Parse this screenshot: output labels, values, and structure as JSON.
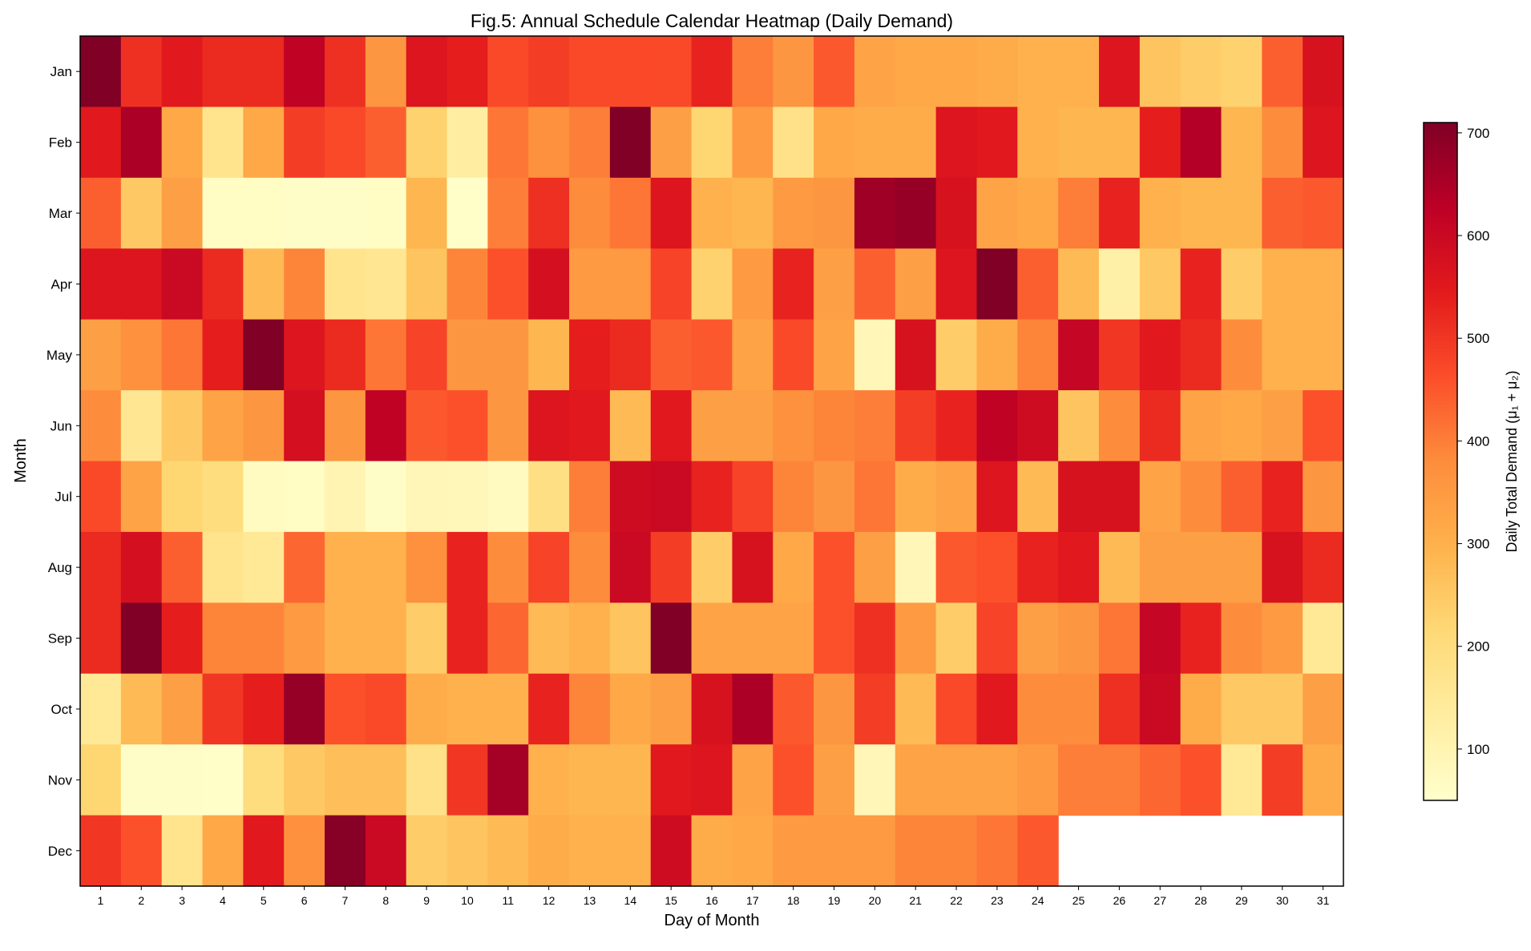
{
  "chart_data": {
    "type": "heatmap",
    "title": "Fig.5: Annual Schedule Calendar Heatmap (Daily Demand)",
    "xlabel": "Day of Month",
    "ylabel": "Month",
    "colorbar_label": "Daily Total Demand (μ₁ + μ₂)",
    "colormap": "YlOrRd",
    "colorbar_range": [
      50,
      710
    ],
    "colorbar_ticks": [
      100,
      200,
      300,
      400,
      500,
      600,
      700
    ],
    "grid": false,
    "x_categories": [
      "1",
      "2",
      "3",
      "4",
      "5",
      "6",
      "7",
      "8",
      "9",
      "10",
      "11",
      "12",
      "13",
      "14",
      "15",
      "16",
      "17",
      "18",
      "19",
      "20",
      "21",
      "22",
      "23",
      "24",
      "25",
      "26",
      "27",
      "28",
      "29",
      "30",
      "31"
    ],
    "y_categories": [
      "Jan",
      "Feb",
      "Mar",
      "Apr",
      "May",
      "Jun",
      "Jul",
      "Aug",
      "Sep",
      "Oct",
      "Nov",
      "Dec"
    ],
    "values": [
      [
        710,
        510,
        550,
        520,
        520,
        620,
        510,
        360,
        560,
        540,
        470,
        490,
        470,
        470,
        470,
        530,
        400,
        360,
        450,
        330,
        320,
        320,
        310,
        300,
        300,
        560,
        260,
        240,
        230,
        440,
        570
      ],
      [
        550,
        650,
        320,
        170,
        320,
        490,
        470,
        440,
        230,
        130,
        410,
        370,
        400,
        710,
        340,
        220,
        350,
        180,
        320,
        310,
        310,
        560,
        550,
        300,
        290,
        290,
        540,
        640,
        290,
        380,
        560
      ],
      [
        440,
        250,
        340,
        65,
        65,
        60,
        60,
        65,
        290,
        55,
        400,
        510,
        380,
        410,
        560,
        300,
        290,
        350,
        360,
        670,
        680,
        570,
        330,
        320,
        400,
        530,
        300,
        290,
        290,
        440,
        450
      ],
      [
        560,
        560,
        600,
        520,
        280,
        390,
        170,
        160,
        260,
        390,
        460,
        580,
        350,
        350,
        480,
        230,
        350,
        530,
        340,
        440,
        340,
        560,
        710,
        440,
        280,
        120,
        250,
        530,
        240,
        300,
        300
      ],
      [
        340,
        370,
        410,
        540,
        710,
        560,
        520,
        410,
        480,
        360,
        360,
        290,
        540,
        520,
        440,
        450,
        330,
        470,
        330,
        90,
        570,
        240,
        310,
        390,
        610,
        500,
        550,
        520,
        380,
        300,
        300
      ],
      [
        380,
        160,
        250,
        330,
        360,
        580,
        360,
        620,
        450,
        460,
        360,
        560,
        550,
        280,
        550,
        340,
        340,
        370,
        390,
        400,
        490,
        530,
        620,
        590,
        260,
        380,
        520,
        330,
        320,
        340,
        460
      ],
      [
        470,
        330,
        220,
        200,
        70,
        65,
        100,
        60,
        90,
        85,
        75,
        190,
        400,
        590,
        600,
        530,
        480,
        390,
        360,
        410,
        310,
        330,
        560,
        280,
        570,
        570,
        330,
        380,
        440,
        530,
        360
      ],
      [
        520,
        580,
        440,
        170,
        150,
        430,
        300,
        300,
        370,
        530,
        380,
        480,
        380,
        600,
        490,
        240,
        570,
        320,
        460,
        340,
        90,
        450,
        460,
        530,
        550,
        280,
        340,
        340,
        340,
        570,
        520
      ],
      [
        520,
        710,
        540,
        390,
        390,
        350,
        300,
        300,
        240,
        530,
        430,
        280,
        300,
        260,
        710,
        330,
        330,
        330,
        460,
        510,
        350,
        240,
        480,
        340,
        360,
        410,
        610,
        530,
        380,
        350,
        150
      ],
      [
        150,
        280,
        340,
        500,
        540,
        680,
        460,
        470,
        310,
        300,
        300,
        530,
        390,
        320,
        340,
        570,
        650,
        450,
        360,
        490,
        280,
        470,
        550,
        380,
        380,
        510,
        600,
        310,
        250,
        250,
        340
      ],
      [
        220,
        60,
        60,
        55,
        200,
        250,
        270,
        270,
        180,
        500,
        660,
        300,
        290,
        290,
        550,
        560,
        330,
        460,
        340,
        90,
        330,
        330,
        330,
        350,
        400,
        400,
        430,
        460,
        150,
        490,
        310
      ],
      [
        500,
        460,
        170,
        320,
        550,
        370,
        700,
        600,
        240,
        260,
        280,
        310,
        300,
        300,
        590,
        310,
        320,
        350,
        350,
        350,
        390,
        390,
        410,
        450,
        null,
        null,
        null,
        null,
        null,
        null,
        null
      ]
    ]
  }
}
